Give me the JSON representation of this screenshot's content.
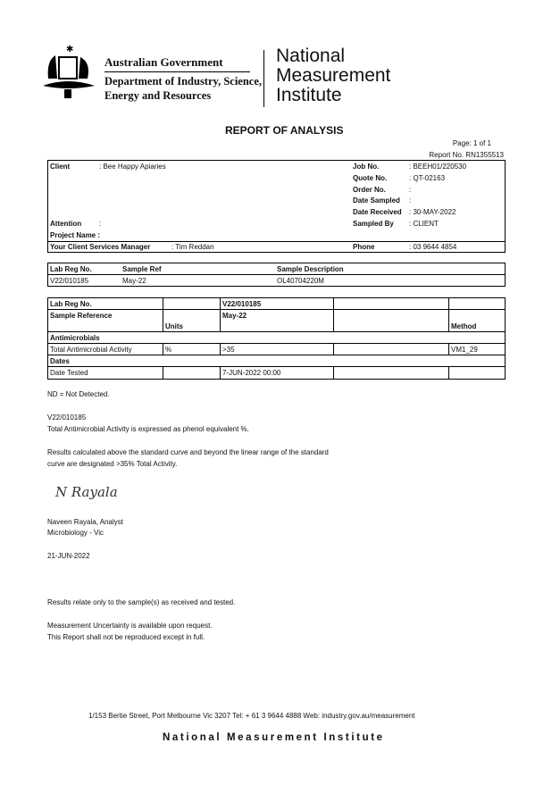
{
  "header": {
    "gov": "Australian Government",
    "dept_line1": "Department of Industry, Science,",
    "dept_line2": "Energy and Resources",
    "nmi_line1": "National",
    "nmi_line2": "Measurement",
    "nmi_line3": "Institute"
  },
  "title": "REPORT OF ANALYSIS",
  "page": "Page: 1 of 1",
  "report_no": "Report No. RN1355513",
  "client_box": {
    "client_label": "Client",
    "client": ": Bee Happy Apiaries",
    "attention_label": "Attention",
    "attention": ":",
    "project_label": "Project Name :",
    "csm_label": "Your Client Services Manager",
    "csm": ": Tim Reddan",
    "right": [
      {
        "label": "Job No.",
        "value": ":  BEEH01/220530"
      },
      {
        "label": "Quote No.",
        "value": ":  QT-02163"
      },
      {
        "label": "Order No.",
        "value": ":"
      },
      {
        "label": "Date Sampled",
        "value": ":"
      },
      {
        "label": "Date Received",
        "value": ":  30-MAY-2022"
      },
      {
        "label": "Sampled By",
        "value": ":  CLIENT"
      }
    ],
    "phone_label": "Phone",
    "phone": ":  03 9644 4854"
  },
  "sample_table": {
    "headers": [
      "Lab Reg No.",
      "Sample Ref",
      "Sample Description"
    ],
    "row": [
      "V22/010185",
      "May-22",
      "OL40704220M"
    ]
  },
  "results": {
    "lab_reg_label": "Lab Reg No.",
    "sample_ref_label": "Sample Reference",
    "units_label": "Units",
    "method_label": "Method",
    "lab_reg": "V22/010185",
    "sample_ref": "May-22",
    "section1": "Antimicrobials",
    "row1": {
      "name": "Total Antimicrobial Activity",
      "units": "%",
      "value": ">35",
      "method": "VM1_29"
    },
    "section2": "Dates",
    "row2": {
      "name": "Date Tested",
      "value": "7-JUN-2022 00:00"
    }
  },
  "notes": {
    "nd": "ND  =  Not Detected.",
    "ref": "V22/010185",
    "n1": "Total Antimicrobial Activity is expressed as phenol equivalent %.",
    "n2": "Results calculated above the standard curve and beyond the linear range of the standard",
    "n3": "curve are designated >35% Total Activity."
  },
  "signature": {
    "text": "N Rayala",
    "name": "Naveen Rayala, Analyst",
    "dept": "Microbiology - Vic",
    "date": "21-JUN-2022"
  },
  "footer_notes": {
    "f1": "Results relate only to the sample(s) as received and tested.",
    "f2": "Measurement Uncertainty is available upon request.",
    "f3": "This Report shall not be reproduced except in full."
  },
  "footer": {
    "address": "1/153 Bertie Street, Port Melbourne Vic 3207   Tel: + 61 3 9644 4888 Web: industry.gov.au/measurement",
    "brand": "National Measurement Institute"
  }
}
